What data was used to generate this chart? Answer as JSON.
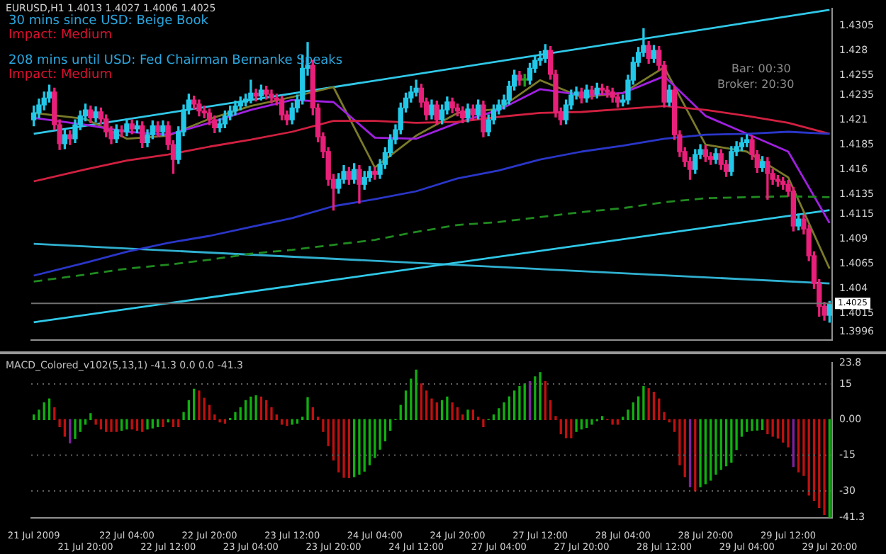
{
  "chart_data": [
    {
      "type": "candlestick",
      "tick_labels": "y",
      "annotations": [
        "EURUSD,H1 1.4013 1.4027 1.4006 1.4025",
        "30 mins since USD: Beige Book",
        "Impact: Medium",
        "208 mins until USD: Fed Chairman Bernanke Speaks",
        "Impact: Medium",
        "Bar: 00:30",
        "Broker: 20:30"
      ],
      "categories": [
        "21 Jul 2009",
        null,
        null,
        null,
        null,
        null,
        null,
        null,
        null,
        null,
        "21 Jul 20:00",
        null,
        null,
        null,
        null,
        null,
        null,
        null,
        "22 Jul 04:00",
        null,
        null,
        null,
        null,
        null,
        null,
        null,
        "22 Jul 12:00",
        null,
        null,
        null,
        null,
        null,
        null,
        null,
        "22 Jul 20:00",
        null,
        null,
        null,
        null,
        null,
        null,
        null,
        "23 Jul 04:00",
        null,
        null,
        null,
        null,
        null,
        null,
        null,
        "23 Jul 12:00",
        null,
        null,
        null,
        null,
        null,
        null,
        null,
        "23 Jul 20:00",
        null,
        null,
        null,
        null,
        null,
        null,
        null,
        "24 Jul 04:00",
        null,
        null,
        null,
        null,
        null,
        null,
        null,
        "24 Jul 12:00",
        null,
        null,
        null,
        null,
        null,
        null,
        null,
        "24 Jul 20:00",
        null,
        null,
        null,
        null,
        null,
        null,
        null,
        "27 Jul 04:00",
        null,
        null,
        null,
        null,
        null,
        null,
        null,
        "27 Jul 12:00",
        null,
        null,
        null,
        null,
        null,
        null,
        null,
        "27 Jul 20:00",
        null,
        null,
        null,
        null,
        null,
        null,
        null,
        "28 Jul 04:00",
        null,
        null,
        null,
        null,
        null,
        null,
        null,
        "28 Jul 12:00",
        null,
        null,
        null,
        null,
        null,
        null,
        null,
        "28 Jul 20:00",
        null,
        null,
        null,
        null,
        null,
        null,
        null,
        "29 Jul 04:00",
        null,
        null,
        null,
        null,
        null,
        null,
        null,
        "29 Jul 12:00",
        null,
        null,
        null,
        null,
        null,
        null,
        null,
        "29 Jul 20:00"
      ],
      "ohlc": [
        [
          1.421,
          1.4224,
          1.4204,
          1.4217
        ],
        [
          1.4217,
          1.4231,
          1.4212,
          1.4225
        ],
        [
          1.4225,
          1.4238,
          1.422,
          1.4232
        ],
        [
          1.4232,
          1.4245,
          1.4228,
          1.4238
        ],
        [
          1.4238,
          1.4242,
          1.42,
          1.4205
        ],
        [
          1.4205,
          1.421,
          1.418,
          1.4186
        ],
        [
          1.4186,
          1.42,
          1.4181,
          1.4195
        ],
        [
          1.4195,
          1.4199,
          1.4185,
          1.4191
        ],
        [
          1.4191,
          1.421,
          1.4187,
          1.4205
        ],
        [
          1.4205,
          1.4219,
          1.42,
          1.4214
        ],
        [
          1.4214,
          1.4226,
          1.4209,
          1.422
        ],
        [
          1.422,
          1.4224,
          1.4207,
          1.4212
        ],
        [
          1.4212,
          1.4223,
          1.4208,
          1.4218
        ],
        [
          1.4218,
          1.4222,
          1.4206,
          1.4211
        ],
        [
          1.4211,
          1.4215,
          1.4193,
          1.4198
        ],
        [
          1.4198,
          1.4203,
          1.4186,
          1.4191
        ],
        [
          1.4191,
          1.4205,
          1.4187,
          1.42
        ],
        [
          1.42,
          1.4204,
          1.4193,
          1.4198
        ],
        [
          1.4198,
          1.4211,
          1.4194,
          1.4206
        ],
        [
          1.4206,
          1.421,
          1.4196,
          1.4201
        ],
        [
          1.4201,
          1.4209,
          1.4197,
          1.4204
        ],
        [
          1.4204,
          1.4208,
          1.4182,
          1.4187
        ],
        [
          1.4187,
          1.42,
          1.4183,
          1.4195
        ],
        [
          1.4195,
          1.4209,
          1.4191,
          1.4204
        ],
        [
          1.4204,
          1.4208,
          1.4193,
          1.4198
        ],
        [
          1.4198,
          1.4209,
          1.4194,
          1.4204
        ],
        [
          1.4204,
          1.4208,
          1.418,
          1.4185
        ],
        [
          1.4185,
          1.4189,
          1.4156,
          1.417
        ],
        [
          1.417,
          1.4203,
          1.4166,
          1.4198
        ],
        [
          1.4198,
          1.4225,
          1.4194,
          1.422
        ],
        [
          1.422,
          1.4236,
          1.4216,
          1.423
        ],
        [
          1.423,
          1.4234,
          1.4221,
          1.4226
        ],
        [
          1.4226,
          1.423,
          1.4214,
          1.4219
        ],
        [
          1.4219,
          1.4224,
          1.4212,
          1.4217
        ],
        [
          1.4217,
          1.4221,
          1.4205,
          1.421
        ],
        [
          1.421,
          1.4214,
          1.4197,
          1.4202
        ],
        [
          1.4202,
          1.4211,
          1.4198,
          1.4206
        ],
        [
          1.4206,
          1.4219,
          1.4202,
          1.4214
        ],
        [
          1.4214,
          1.4224,
          1.421,
          1.4219
        ],
        [
          1.4219,
          1.4229,
          1.4215,
          1.4224
        ],
        [
          1.4224,
          1.4233,
          1.422,
          1.4228
        ],
        [
          1.4228,
          1.4236,
          1.4224,
          1.4231
        ],
        [
          1.4231,
          1.425,
          1.4227,
          1.4237
        ],
        [
          1.4237,
          1.4241,
          1.4229,
          1.4234
        ],
        [
          1.4234,
          1.4245,
          1.423,
          1.424
        ],
        [
          1.424,
          1.4244,
          1.4231,
          1.4236
        ],
        [
          1.4236,
          1.424,
          1.4227,
          1.4232
        ],
        [
          1.4232,
          1.4236,
          1.4225,
          1.423
        ],
        [
          1.423,
          1.4234,
          1.421,
          1.4215
        ],
        [
          1.4215,
          1.4219,
          1.4205,
          1.421
        ],
        [
          1.421,
          1.4227,
          1.4206,
          1.4222
        ],
        [
          1.4222,
          1.4235,
          1.4218,
          1.423
        ],
        [
          1.423,
          1.4275,
          1.4226,
          1.4262
        ],
        [
          1.4262,
          1.4288,
          1.4255,
          1.4265
        ],
        [
          1.4265,
          1.427,
          1.4215,
          1.4222
        ],
        [
          1.4222,
          1.4226,
          1.4188,
          1.4193
        ],
        [
          1.4193,
          1.4197,
          1.4172,
          1.4178
        ],
        [
          1.4178,
          1.4182,
          1.4144,
          1.415
        ],
        [
          1.415,
          1.4155,
          1.4119,
          1.4141
        ],
        [
          1.4141,
          1.4156,
          1.4136,
          1.415
        ],
        [
          1.415,
          1.4164,
          1.4146,
          1.4158
        ],
        [
          1.4158,
          1.4162,
          1.4145,
          1.415
        ],
        [
          1.415,
          1.4166,
          1.4146,
          1.416
        ],
        [
          1.416,
          1.4164,
          1.4126,
          1.4145
        ],
        [
          1.4145,
          1.4158,
          1.414,
          1.4152
        ],
        [
          1.4152,
          1.4163,
          1.4148,
          1.4158
        ],
        [
          1.4158,
          1.4162,
          1.415,
          1.4155
        ],
        [
          1.4155,
          1.417,
          1.4151,
          1.4165
        ],
        [
          1.4165,
          1.4182,
          1.4161,
          1.4177
        ],
        [
          1.4177,
          1.4195,
          1.4173,
          1.419
        ],
        [
          1.419,
          1.4205,
          1.4186,
          1.42
        ],
        [
          1.42,
          1.4227,
          1.4196,
          1.4222
        ],
        [
          1.4222,
          1.4237,
          1.4218,
          1.4232
        ],
        [
          1.4232,
          1.4244,
          1.4228,
          1.4238
        ],
        [
          1.4238,
          1.425,
          1.4234,
          1.4242
        ],
        [
          1.4242,
          1.4246,
          1.4223,
          1.4228
        ],
        [
          1.4228,
          1.4232,
          1.421,
          1.4215
        ],
        [
          1.4215,
          1.423,
          1.4211,
          1.4225
        ],
        [
          1.4225,
          1.4229,
          1.4205,
          1.421
        ],
        [
          1.421,
          1.4225,
          1.4206,
          1.422
        ],
        [
          1.422,
          1.4233,
          1.4216,
          1.4228
        ],
        [
          1.4228,
          1.4232,
          1.4217,
          1.4222
        ],
        [
          1.4222,
          1.4226,
          1.4214,
          1.4219
        ],
        [
          1.4219,
          1.4223,
          1.4207,
          1.4212
        ],
        [
          1.4212,
          1.4226,
          1.4208,
          1.4221
        ],
        [
          1.4221,
          1.4225,
          1.421,
          1.4215
        ],
        [
          1.4215,
          1.423,
          1.4211,
          1.4225
        ],
        [
          1.4225,
          1.4229,
          1.4193,
          1.4198
        ],
        [
          1.4198,
          1.4215,
          1.4194,
          1.421
        ],
        [
          1.421,
          1.4225,
          1.4206,
          1.422
        ],
        [
          1.422,
          1.423,
          1.4216,
          1.4225
        ],
        [
          1.4225,
          1.4235,
          1.4221,
          1.423
        ],
        [
          1.423,
          1.4249,
          1.4226,
          1.4244
        ],
        [
          1.4244,
          1.426,
          1.424,
          1.4255
        ],
        [
          1.4255,
          1.4259,
          1.4245,
          1.425
        ],
        [
          1.425,
          1.4256,
          1.4244,
          1.425
        ],
        [
          1.425,
          1.4267,
          1.4246,
          1.4262
        ],
        [
          1.4262,
          1.4275,
          1.4258,
          1.427
        ],
        [
          1.427,
          1.4279,
          1.4265,
          1.4272
        ],
        [
          1.4272,
          1.4286,
          1.4268,
          1.428
        ],
        [
          1.428,
          1.4284,
          1.4251,
          1.4256
        ],
        [
          1.4256,
          1.426,
          1.4213,
          1.4218
        ],
        [
          1.4218,
          1.4222,
          1.4205,
          1.421
        ],
        [
          1.421,
          1.423,
          1.4206,
          1.4225
        ],
        [
          1.4225,
          1.424,
          1.4221,
          1.4235
        ],
        [
          1.4235,
          1.4243,
          1.4231,
          1.4238
        ],
        [
          1.4238,
          1.4242,
          1.4227,
          1.4232
        ],
        [
          1.4232,
          1.4245,
          1.4228,
          1.424
        ],
        [
          1.424,
          1.4244,
          1.4231,
          1.4236
        ],
        [
          1.4236,
          1.4247,
          1.4232,
          1.4242
        ],
        [
          1.4242,
          1.4246,
          1.4235,
          1.424
        ],
        [
          1.424,
          1.4244,
          1.4233,
          1.4238
        ],
        [
          1.4238,
          1.4242,
          1.4228,
          1.4233
        ],
        [
          1.4233,
          1.4237,
          1.4223,
          1.4228
        ],
        [
          1.4228,
          1.4235,
          1.4224,
          1.423
        ],
        [
          1.423,
          1.4255,
          1.4226,
          1.425
        ],
        [
          1.425,
          1.4273,
          1.4246,
          1.4268
        ],
        [
          1.4268,
          1.4283,
          1.4264,
          1.4278
        ],
        [
          1.4278,
          1.4302,
          1.4274,
          1.4285
        ],
        [
          1.4285,
          1.4289,
          1.4267,
          1.4272
        ],
        [
          1.4272,
          1.4285,
          1.4268,
          1.428
        ],
        [
          1.428,
          1.4284,
          1.426,
          1.4265
        ],
        [
          1.4265,
          1.4269,
          1.4223,
          1.4228
        ],
        [
          1.4228,
          1.4245,
          1.4224,
          1.424
        ],
        [
          1.424,
          1.4244,
          1.419,
          1.4195
        ],
        [
          1.4195,
          1.4199,
          1.4173,
          1.4178
        ],
        [
          1.4178,
          1.4182,
          1.4163,
          1.4168
        ],
        [
          1.4168,
          1.4172,
          1.415,
          1.416
        ],
        [
          1.416,
          1.418,
          1.4156,
          1.4175
        ],
        [
          1.4175,
          1.4185,
          1.4171,
          1.418
        ],
        [
          1.418,
          1.4184,
          1.4168,
          1.4173
        ],
        [
          1.4173,
          1.4177,
          1.4165,
          1.417
        ],
        [
          1.417,
          1.4181,
          1.4166,
          1.4176
        ],
        [
          1.4176,
          1.418,
          1.416,
          1.4165
        ],
        [
          1.4165,
          1.4169,
          1.4153,
          1.4158
        ],
        [
          1.4158,
          1.4183,
          1.4154,
          1.4178
        ],
        [
          1.4178,
          1.4188,
          1.4174,
          1.4183
        ],
        [
          1.4183,
          1.4192,
          1.4179,
          1.4187
        ],
        [
          1.4187,
          1.4195,
          1.4183,
          1.419
        ],
        [
          1.419,
          1.4194,
          1.417,
          1.4175
        ],
        [
          1.4175,
          1.4179,
          1.4157,
          1.4162
        ],
        [
          1.4162,
          1.4173,
          1.4158,
          1.4168
        ],
        [
          1.4168,
          1.4172,
          1.413,
          1.4156
        ],
        [
          1.4156,
          1.416,
          1.4145,
          1.415
        ],
        [
          1.415,
          1.4154,
          1.4143,
          1.4148
        ],
        [
          1.4148,
          1.4152,
          1.414,
          1.4145
        ],
        [
          1.4145,
          1.4149,
          1.4133,
          1.4138
        ],
        [
          1.4138,
          1.4142,
          1.4098,
          1.4103
        ],
        [
          1.4103,
          1.4115,
          1.4099,
          1.411
        ],
        [
          1.411,
          1.4114,
          1.4095,
          1.41
        ],
        [
          1.41,
          1.4104,
          1.4068,
          1.4073
        ],
        [
          1.4073,
          1.4077,
          1.404,
          1.4045
        ],
        [
          1.4045,
          1.4049,
          1.4012,
          1.4022
        ],
        [
          1.4022,
          1.4026,
          1.4008,
          1.4013
        ],
        [
          1.4013,
          1.4027,
          1.4006,
          1.4025
        ]
      ],
      "colors": [
        "#22c8e8",
        "#22c8e8",
        "#22c8e8",
        "#22c8e8",
        "#e8207a",
        "#e8207a",
        "#22c8e8",
        "#e8207a",
        "#22c8e8",
        "#22c8e8",
        "#22c8e8",
        "#e8207a",
        "#22c8e8",
        "#e8207a",
        "#e8207a",
        "#e8207a",
        "#22c8e8",
        "#e8207a",
        "#22c8e8",
        "#e8207a",
        "#22c8e8",
        "#e8207a",
        "#22c8e8",
        "#22c8e8",
        "#e8207a",
        "#22c8e8",
        "#e8207a",
        "#e8207a",
        "#22c8e8",
        "#22c8e8",
        "#22c8e8",
        "#e8207a",
        "#e8207a",
        "#e8207a",
        "#e8207a",
        "#e8207a",
        "#22c8e8",
        "#22c8e8",
        "#22c8e8",
        "#22c8e8",
        "#22c8e8",
        "#22c8e8",
        "#22c8e8",
        "#e8207a",
        "#22c8e8",
        "#e8207a",
        "#e8207a",
        "#e8207a",
        "#e8207a",
        "#e8207a",
        "#22c8e8",
        "#22c8e8",
        "#22c8e8",
        "#22c8e8",
        "#e8207a",
        "#e8207a",
        "#e8207a",
        "#e8207a",
        "#e8207a",
        "#22c8e8",
        "#22c8e8",
        "#e8207a",
        "#22c8e8",
        "#e8207a",
        "#22c8e8",
        "#22c8e8",
        "#e8207a",
        "#22c8e8",
        "#22c8e8",
        "#22c8e8",
        "#22c8e8",
        "#22c8e8",
        "#22c8e8",
        "#22c8e8",
        "#22c8e8",
        "#e8207a",
        "#e8207a",
        "#22c8e8",
        "#e8207a",
        "#22c8e8",
        "#22c8e8",
        "#e8207a",
        "#e8207a",
        "#e8207a",
        "#22c8e8",
        "#e8207a",
        "#22c8e8",
        "#e8207a",
        "#22c8e8",
        "#22c8e8",
        "#22c8e8",
        "#22c8e8",
        "#22c8e8",
        "#22c8e8",
        "#e8207a",
        "#20a020",
        "#22c8e8",
        "#22c8e8",
        "#22c8e8",
        "#22c8e8",
        "#e8207a",
        "#e8207a",
        "#e8207a",
        "#22c8e8",
        "#22c8e8",
        "#22c8e8",
        "#e8207a",
        "#22c8e8",
        "#e8207a",
        "#22c8e8",
        "#e8207a",
        "#e8207a",
        "#e8207a",
        "#e8207a",
        "#22c8e8",
        "#22c8e8",
        "#22c8e8",
        "#22c8e8",
        "#22c8e8",
        "#e8207a",
        "#22c8e8",
        "#e8207a",
        "#e8207a",
        "#22c8e8",
        "#e8207a",
        "#e8207a",
        "#e8207a",
        "#e8207a",
        "#22c8e8",
        "#22c8e8",
        "#e8207a",
        "#e8207a",
        "#22c8e8",
        "#e8207a",
        "#e8207a",
        "#22c8e8",
        "#22c8e8",
        "#22c8e8",
        "#22c8e8",
        "#e8207a",
        "#e8207a",
        "#22c8e8",
        "#e8207a",
        "#e8207a",
        "#e8207a",
        "#e8207a",
        "#e8207a",
        "#e8207a",
        "#22c8e8",
        "#e8207a",
        "#e8207a",
        "#e8207a",
        "#e8207a",
        "#e8207a",
        "#22c8e8"
      ],
      "series": [
        {
          "type": "line",
          "color": "#2a36c8",
          "x": [
            "21 Jul 2009",
            "21 Jul 20:00",
            "22 Jul 04:00",
            "22 Jul 12:00",
            "22 Jul 20:00",
            "23 Jul 04:00",
            "23 Jul 12:00",
            "23 Jul 20:00",
            "24 Jul 04:00",
            "24 Jul 12:00",
            "24 Jul 20:00",
            "27 Jul 04:00",
            "27 Jul 12:00",
            "27 Jul 20:00",
            "28 Jul 04:00",
            "28 Jul 12:00",
            "28 Jul 20:00",
            "29 Jul 04:00",
            "29 Jul 12:00",
            "29 Jul 20:00"
          ],
          "values": [
            1.4053,
            1.4066,
            1.4077,
            1.4086,
            1.4093,
            1.4102,
            1.4111,
            1.4123,
            1.413,
            1.4138,
            1.4151,
            1.4159,
            1.417,
            1.4178,
            1.4184,
            1.4191,
            1.4195,
            1.4196,
            1.4198,
            1.4196
          ]
        },
        {
          "type": "line",
          "color": "#208a20",
          "line_style": "dashed",
          "x": [
            "21 Jul 2009",
            "21 Jul 20:00",
            "22 Jul 04:00",
            "22 Jul 12:00",
            "22 Jul 20:00",
            "23 Jul 04:00",
            "23 Jul 12:00",
            "23 Jul 20:00",
            "24 Jul 04:00",
            "24 Jul 12:00",
            "24 Jul 20:00",
            "27 Jul 04:00",
            "27 Jul 12:00",
            "27 Jul 20:00",
            "28 Jul 04:00",
            "28 Jul 12:00",
            "28 Jul 20:00",
            "29 Jul 04:00",
            "29 Jul 12:00",
            "29 Jul 20:00"
          ],
          "values": [
            1.4047,
            1.4054,
            1.406,
            1.4064,
            1.4069,
            1.4075,
            1.4079,
            1.4084,
            1.4089,
            1.4097,
            1.4104,
            1.4107,
            1.4112,
            1.4117,
            1.4121,
            1.4127,
            1.4131,
            1.4132,
            1.4133,
            1.4132
          ]
        },
        {
          "type": "line",
          "color": "#d02040",
          "x": [
            "21 Jul 2009",
            "21 Jul 20:00",
            "22 Jul 04:00",
            "22 Jul 12:00",
            "22 Jul 20:00",
            "23 Jul 04:00",
            "23 Jul 12:00",
            "23 Jul 20:00",
            "24 Jul 04:00",
            "24 Jul 12:00",
            "24 Jul 20:00",
            "27 Jul 04:00",
            "27 Jul 12:00",
            "27 Jul 20:00",
            "28 Jul 04:00",
            "28 Jul 12:00",
            "28 Jul 20:00",
            "29 Jul 04:00",
            "29 Jul 12:00",
            "29 Jul 20:00"
          ],
          "values": [
            1.4148,
            1.416,
            1.4169,
            1.4175,
            1.4183,
            1.419,
            1.4198,
            1.4209,
            1.4209,
            1.4207,
            1.4208,
            1.4213,
            1.4217,
            1.4218,
            1.4221,
            1.4224,
            1.422,
            1.4214,
            1.4207,
            1.4196
          ]
        },
        {
          "type": "line",
          "color": "#a020e0",
          "x": [
            "21 Jul 2009",
            "21 Jul 20:00",
            "22 Jul 04:00",
            "22 Jul 12:00",
            "22 Jul 20:00",
            "23 Jul 04:00",
            "23 Jul 12:00",
            "23 Jul 20:00",
            "24 Jul 04:00",
            "24 Jul 12:00",
            "24 Jul 20:00",
            "27 Jul 04:00",
            "27 Jul 12:00",
            "27 Jul 20:00",
            "28 Jul 04:00",
            "28 Jul 12:00",
            "28 Jul 20:00",
            "29 Jul 04:00",
            "29 Jul 12:00",
            "29 Jul 20:00"
          ],
          "values": [
            1.4212,
            1.4205,
            1.4198,
            1.4195,
            1.4207,
            1.422,
            1.423,
            1.4228,
            1.4192,
            1.4191,
            1.4207,
            1.422,
            1.4241,
            1.4235,
            1.4237,
            1.4254,
            1.4214,
            1.4196,
            1.4178,
            1.4106
          ]
        },
        {
          "type": "line",
          "color": "#7a7a2a",
          "x": [
            "21 Jul 2009",
            "21 Jul 20:00",
            "22 Jul 04:00",
            "22 Jul 12:00",
            "22 Jul 20:00",
            "23 Jul 04:00",
            "23 Jul 12:00",
            "23 Jul 20:00",
            "24 Jul 04:00",
            "24 Jul 12:00",
            "24 Jul 20:00",
            "27 Jul 04:00",
            "27 Jul 12:00",
            "27 Jul 20:00",
            "28 Jul 04:00",
            "28 Jul 12:00",
            "28 Jul 20:00",
            "29 Jul 04:00",
            "29 Jul 12:00",
            "29 Jul 20:00"
          ],
          "values": [
            1.4217,
            1.4211,
            1.4191,
            1.4194,
            1.4211,
            1.4224,
            1.4233,
            1.4243,
            1.4162,
            1.4194,
            1.4217,
            1.4221,
            1.425,
            1.4233,
            1.4237,
            1.4263,
            1.4185,
            1.4178,
            1.4152,
            1.406
          ]
        },
        {
          "type": "line",
          "color": "#30c8e8",
          "x": [
            "21 Jul 2009",
            "29 Jul 20:00"
          ],
          "values": [
            1.4196,
            1.4321
          ]
        },
        {
          "type": "line",
          "color": "#30c8e8",
          "x": [
            "21 Jul 2009",
            "29 Jul 20:00"
          ],
          "values": [
            1.4006,
            1.4119
          ]
        },
        {
          "type": "line",
          "color": "#30b0d0",
          "x": [
            "21 Jul 2009",
            "29 Jul 20:00"
          ],
          "values": [
            1.4085,
            1.4045
          ]
        }
      ],
      "ylim": [
        1.3988,
        1.4322
      ],
      "yticks": [
        1.4305,
        1.428,
        1.4255,
        1.4235,
        1.421,
        1.4185,
        1.416,
        1.4135,
        1.4115,
        1.409,
        1.4065,
        1.404,
        1.4015,
        1.3996
      ],
      "ref_lines": [
        {
          "axis": "y",
          "value": 1.4025,
          "label": "1.4025",
          "color": "#707070"
        }
      ],
      "marker": "none",
      "grid": false
    },
    {
      "type": "bar",
      "title": "MACD_Colored_v102(5,13,1) -41.3 0.0 0.0 -41.3",
      "categories": [
        "21 Jul 2009",
        null,
        null,
        null,
        null,
        null,
        null,
        null,
        null,
        null,
        "21 Jul 20:00",
        null,
        null,
        null,
        null,
        null,
        null,
        null,
        "22 Jul 04:00",
        null,
        null,
        null,
        null,
        null,
        null,
        null,
        "22 Jul 12:00",
        null,
        null,
        null,
        null,
        null,
        null,
        null,
        "22 Jul 20:00",
        null,
        null,
        null,
        null,
        null,
        null,
        null,
        "23 Jul 04:00",
        null,
        null,
        null,
        null,
        null,
        null,
        null,
        "23 Jul 12:00",
        null,
        null,
        null,
        null,
        null,
        null,
        null,
        "23 Jul 20:00",
        null,
        null,
        null,
        null,
        null,
        null,
        null,
        "24 Jul 04:00",
        null,
        null,
        null,
        null,
        null,
        null,
        null,
        "24 Jul 12:00",
        null,
        null,
        null,
        null,
        null,
        null,
        null,
        "24 Jul 20:00",
        null,
        null,
        null,
        null,
        null,
        null,
        null,
        "27 Jul 04:00",
        null,
        null,
        null,
        null,
        null,
        null,
        null,
        "27 Jul 12:00",
        null,
        null,
        null,
        null,
        null,
        null,
        null,
        "27 Jul 20:00",
        null,
        null,
        null,
        null,
        null,
        null,
        null,
        "28 Jul 04:00",
        null,
        null,
        null,
        null,
        null,
        null,
        null,
        "28 Jul 12:00",
        null,
        null,
        null,
        null,
        null,
        null,
        null,
        "28 Jul 20:00",
        null,
        null,
        null,
        null,
        null,
        null,
        null,
        "29 Jul 04:00",
        null,
        null,
        null,
        null,
        null,
        null,
        null,
        "29 Jul 12:00",
        null,
        null,
        null,
        null,
        null,
        null,
        null,
        "29 Jul 20:00"
      ],
      "values": [
        2,
        4,
        7,
        8.7,
        5,
        -3,
        -7,
        -9.8,
        -8,
        -5,
        -2,
        2.5,
        -2,
        -4,
        -5,
        -5,
        -5,
        -4.5,
        -4,
        -4,
        -4.5,
        -5,
        -4,
        -3.5,
        -3,
        -3,
        -1,
        -3,
        -3,
        3,
        8,
        12.8,
        12,
        9,
        6,
        2,
        -1,
        -1.5,
        0.5,
        3,
        5,
        8,
        9.5,
        10,
        9.5,
        8,
        5,
        2,
        -2,
        -2.5,
        -2,
        -1.5,
        1,
        9.3,
        5,
        1,
        -5,
        -11,
        -17,
        -22,
        -24.3,
        -24.5,
        -24,
        -23,
        -21.7,
        -19,
        -16,
        -12.5,
        -9,
        -4.5,
        0,
        6,
        12,
        17,
        20.8,
        15,
        12,
        8.7,
        7,
        8,
        9.5,
        7,
        5,
        2,
        4,
        4,
        1,
        -3,
        0,
        2,
        4.6,
        7,
        9.6,
        12,
        13.9,
        15,
        16,
        18,
        19.8,
        16,
        8,
        1.3,
        -6,
        -7.6,
        -7.6,
        -5,
        -4,
        -3.3,
        -2,
        -0.5,
        1.3,
        0,
        -2,
        -2,
        1,
        4,
        7,
        9.6,
        13.9,
        13,
        11.5,
        8.7,
        3,
        -1,
        -5,
        -19,
        -24,
        -28.3,
        -30,
        -28.3,
        -27,
        -25.5,
        -23,
        -21,
        -19.5,
        -18,
        -12.6,
        -7,
        -5,
        -4.6,
        -4.4,
        -4.2,
        -6,
        -7,
        -7.8,
        -9.5,
        -11.5,
        -19.8,
        -22,
        -23.5,
        -31.8,
        -34,
        -37,
        -40,
        -41.3
      ],
      "colors": [
        "#10b010",
        "#10b010",
        "#10b010",
        "#10b010",
        "#c01010",
        "#c01010",
        "#c01010",
        "#8020a0",
        "#10b010",
        "#10b010",
        "#10b010",
        "#10b010",
        "#c01010",
        "#c01010",
        "#c01010",
        "#c01010",
        "#c01010",
        "#10b010",
        "#10b010",
        "#c01010",
        "#c01010",
        "#c01010",
        "#10b010",
        "#10b010",
        "#10b010",
        "#c01010",
        "#10b010",
        "#c01010",
        "#c01010",
        "#10b010",
        "#10b010",
        "#10b010",
        "#c01010",
        "#c01010",
        "#c01010",
        "#c01010",
        "#c01010",
        "#c01010",
        "#10b010",
        "#10b010",
        "#10b010",
        "#10b010",
        "#10b010",
        "#10b010",
        "#c01010",
        "#c01010",
        "#c01010",
        "#c01010",
        "#c01010",
        "#c01010",
        "#10b010",
        "#10b010",
        "#10b010",
        "#10b010",
        "#c01010",
        "#c01010",
        "#c01010",
        "#c01010",
        "#c01010",
        "#c01010",
        "#c01010",
        "#c01010",
        "#10b010",
        "#10b010",
        "#10b010",
        "#10b010",
        "#10b010",
        "#10b010",
        "#10b010",
        "#10b010",
        "#10b010",
        "#10b010",
        "#10b010",
        "#10b010",
        "#10b010",
        "#c01010",
        "#c01010",
        "#c01010",
        "#c01010",
        "#10b010",
        "#10b010",
        "#c01010",
        "#c01010",
        "#c01010",
        "#10b010",
        "#c01010",
        "#c01010",
        "#c01010",
        "#10b010",
        "#10b010",
        "#10b010",
        "#10b010",
        "#10b010",
        "#10b010",
        "#10b010",
        "#10b010",
        "#8020a0",
        "#10b010",
        "#10b010",
        "#c01010",
        "#c01010",
        "#c01010",
        "#c01010",
        "#c01010",
        "#c01010",
        "#10b010",
        "#10b010",
        "#10b010",
        "#10b010",
        "#10b010",
        "#10b010",
        "#c01010",
        "#c01010",
        "#c01010",
        "#10b010",
        "#10b010",
        "#10b010",
        "#10b010",
        "#10b010",
        "#c01010",
        "#c01010",
        "#c01010",
        "#c01010",
        "#c01010",
        "#c01010",
        "#c01010",
        "#c01010",
        "#8020a0",
        "#c01010",
        "#10b010",
        "#10b010",
        "#10b010",
        "#10b010",
        "#10b010",
        "#10b010",
        "#10b010",
        "#10b010",
        "#10b010",
        "#10b010",
        "#10b010",
        "#10b010",
        "#10b010",
        "#c01010",
        "#c01010",
        "#c01010",
        "#c01010",
        "#c01010",
        "#8020a0",
        "#c01010",
        "#c01010",
        "#c01010",
        "#c01010",
        "#c01010",
        "#c01010",
        "#10b010"
      ],
      "ylim": [
        -41.3,
        23.8
      ],
      "yticks": [
        23.8,
        15,
        {
          "value": 0,
          "label": "0.00"
        },
        -15,
        -30,
        -41.3
      ],
      "ref_lines": [
        {
          "axis": "y",
          "value": 15,
          "line_style": "dotted",
          "color": "#606060"
        },
        {
          "axis": "y",
          "value": -15,
          "line_style": "dotted",
          "color": "#606060"
        },
        {
          "axis": "y",
          "value": -30,
          "line_style": "dotted",
          "color": "#606060"
        }
      ],
      "grid": false
    }
  ]
}
